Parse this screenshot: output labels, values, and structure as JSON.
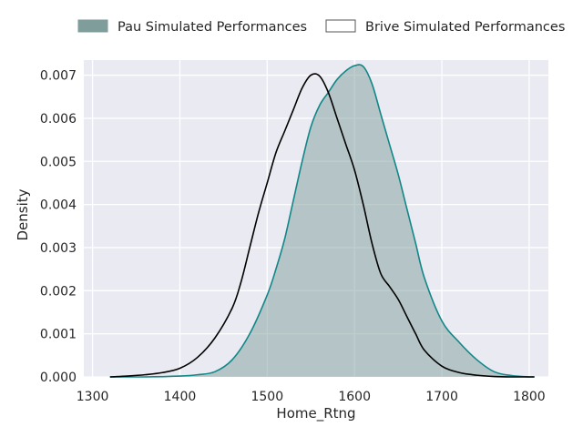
{
  "chart_data": {
    "type": "area",
    "xlabel": "Home_Rtng",
    "ylabel": "Density",
    "xlim": [
      1290,
      1822
    ],
    "ylim": [
      0,
      0.00735
    ],
    "x_ticks": [
      1300,
      1400,
      1500,
      1600,
      1700,
      1800
    ],
    "x_tick_labels": [
      "1300",
      "1400",
      "1500",
      "1600",
      "1700",
      "1800"
    ],
    "y_ticks": [
      0,
      0.001,
      0.002,
      0.003,
      0.004,
      0.005,
      0.006,
      0.007
    ],
    "y_tick_labels": [
      "0.000",
      "0.001",
      "0.002",
      "0.003",
      "0.004",
      "0.005",
      "0.006",
      "0.007"
    ],
    "grid": true,
    "legend_position": "top, above plot",
    "series": [
      {
        "name": "Pau Simulated Performances",
        "fill": "#7f9d9b",
        "stroke": "#118787",
        "filled": true,
        "x": [
          1320,
          1360,
          1400,
          1420,
          1440,
          1460,
          1480,
          1500,
          1510,
          1520,
          1530,
          1540,
          1550,
          1560,
          1570,
          1580,
          1590,
          1600,
          1610,
          1620,
          1630,
          1640,
          1650,
          1660,
          1670,
          1680,
          1700,
          1720,
          1740,
          1760,
          1780,
          1800,
          1806
        ],
        "values": [
          0.0,
          0.0,
          2e-05,
          5e-05,
          0.00012,
          0.0004,
          0.001,
          0.0019,
          0.0025,
          0.0032,
          0.0041,
          0.005,
          0.0058,
          0.0063,
          0.0066,
          0.0069,
          0.0071,
          0.00722,
          0.0072,
          0.0068,
          0.0061,
          0.0054,
          0.0047,
          0.0039,
          0.0031,
          0.0023,
          0.0013,
          0.0008,
          0.0004,
          0.00012,
          3e-05,
          0.0,
          0.0
        ]
      },
      {
        "name": "Brive Simulated Performances",
        "fill": "#ffffff",
        "stroke": "#000000",
        "filled": false,
        "x": [
          1320,
          1340,
          1360,
          1380,
          1400,
          1420,
          1440,
          1460,
          1470,
          1480,
          1490,
          1500,
          1510,
          1520,
          1530,
          1540,
          1550,
          1560,
          1570,
          1580,
          1590,
          1600,
          1610,
          1620,
          1630,
          1640,
          1650,
          1660,
          1670,
          1680,
          1700,
          1720,
          1740,
          1760,
          1780,
          1800,
          1806
        ],
        "values": [
          0.0,
          2e-05,
          5e-05,
          0.0001,
          0.0002,
          0.00045,
          0.0009,
          0.0016,
          0.0022,
          0.003,
          0.0038,
          0.0045,
          0.0052,
          0.0057,
          0.0062,
          0.0067,
          0.007,
          0.00698,
          0.0066,
          0.006,
          0.0054,
          0.0048,
          0.004,
          0.0031,
          0.0024,
          0.0021,
          0.0018,
          0.0014,
          0.001,
          0.00062,
          0.00025,
          0.0001,
          4e-05,
          1e-05,
          0.0,
          0.0,
          0.0
        ]
      }
    ]
  }
}
